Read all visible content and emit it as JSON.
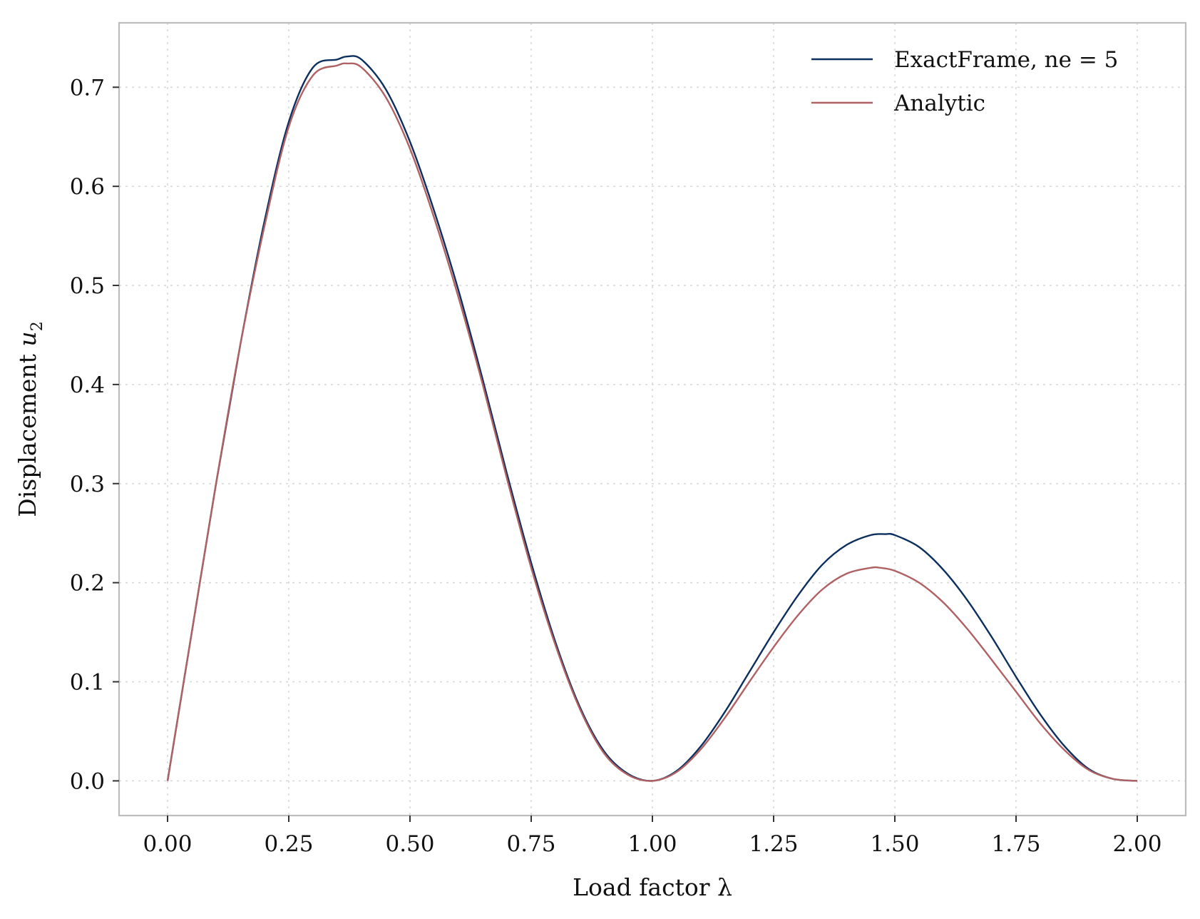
{
  "chart_data": {
    "type": "line",
    "title": "",
    "xlabel": "Load factor λ",
    "ylabel_text": "Displacement ",
    "ylabel_var": "u",
    "ylabel_sub": "2",
    "xlim": [
      -0.1,
      2.1
    ],
    "ylim": [
      -0.035,
      0.765
    ],
    "xticks": [
      0.0,
      0.25,
      0.5,
      0.75,
      1.0,
      1.25,
      1.5,
      1.75,
      2.0
    ],
    "xtick_labels": [
      "0.00",
      "0.25",
      "0.50",
      "0.75",
      "1.00",
      "1.25",
      "1.50",
      "1.75",
      "2.00"
    ],
    "yticks": [
      0.0,
      0.1,
      0.2,
      0.3,
      0.4,
      0.5,
      0.6,
      0.7
    ],
    "ytick_labels": [
      "0.0",
      "0.1",
      "0.2",
      "0.3",
      "0.4",
      "0.5",
      "0.6",
      "0.7"
    ],
    "grid": true,
    "legend_position": "top-right",
    "series": [
      {
        "name": "ExactFrame, ne = 5",
        "color": "#0b2f5e",
        "x": [
          0.0,
          0.05,
          0.1,
          0.15,
          0.2,
          0.25,
          0.3,
          0.35,
          0.37,
          0.4,
          0.45,
          0.5,
          0.55,
          0.6,
          0.65,
          0.7,
          0.75,
          0.8,
          0.85,
          0.9,
          0.95,
          1.0,
          1.05,
          1.1,
          1.15,
          1.2,
          1.25,
          1.3,
          1.35,
          1.4,
          1.45,
          1.48,
          1.5,
          1.55,
          1.6,
          1.65,
          1.7,
          1.75,
          1.8,
          1.85,
          1.9,
          1.95,
          2.0
        ],
        "y": [
          0.0,
          0.15,
          0.3,
          0.44,
          0.565,
          0.665,
          0.72,
          0.728,
          0.731,
          0.728,
          0.698,
          0.645,
          0.575,
          0.495,
          0.405,
          0.31,
          0.22,
          0.14,
          0.075,
          0.03,
          0.007,
          0.0,
          0.01,
          0.035,
          0.07,
          0.11,
          0.15,
          0.187,
          0.218,
          0.238,
          0.248,
          0.249,
          0.248,
          0.236,
          0.213,
          0.182,
          0.145,
          0.105,
          0.067,
          0.035,
          0.012,
          0.002,
          0.0
        ]
      },
      {
        "name": "Analytic",
        "color": "#b06164",
        "x": [
          0.0,
          0.05,
          0.1,
          0.15,
          0.2,
          0.25,
          0.3,
          0.35,
          0.37,
          0.4,
          0.45,
          0.5,
          0.55,
          0.6,
          0.65,
          0.7,
          0.75,
          0.8,
          0.85,
          0.9,
          0.95,
          1.0,
          1.05,
          1.1,
          1.15,
          1.2,
          1.25,
          1.3,
          1.35,
          1.4,
          1.45,
          1.47,
          1.5,
          1.55,
          1.6,
          1.65,
          1.7,
          1.75,
          1.8,
          1.85,
          1.9,
          1.95,
          2.0
        ],
        "y": [
          0.0,
          0.15,
          0.3,
          0.44,
          0.56,
          0.66,
          0.712,
          0.722,
          0.724,
          0.72,
          0.69,
          0.638,
          0.568,
          0.488,
          0.4,
          0.305,
          0.215,
          0.137,
          0.073,
          0.028,
          0.006,
          0.0,
          0.009,
          0.032,
          0.064,
          0.1,
          0.135,
          0.167,
          0.193,
          0.209,
          0.215,
          0.215,
          0.212,
          0.2,
          0.18,
          0.153,
          0.122,
          0.09,
          0.058,
          0.031,
          0.011,
          0.002,
          0.0
        ]
      }
    ]
  }
}
